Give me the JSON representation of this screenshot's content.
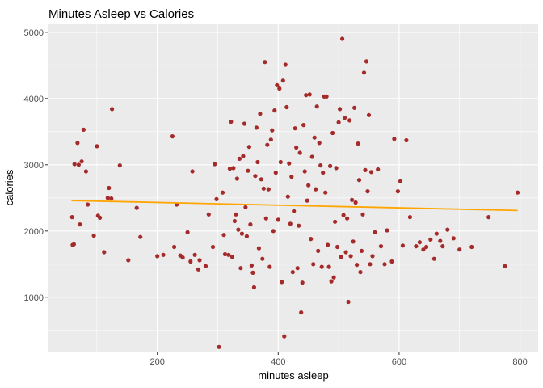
{
  "chart_data": {
    "type": "scatter",
    "title": "Minutes Asleep vs Calories",
    "xlabel": "minutes asleep",
    "ylabel": "calories",
    "xlim": [
      20,
      830
    ],
    "ylim": [
      180,
      5120
    ],
    "x_ticks": [
      200,
      400,
      600,
      800
    ],
    "y_ticks": [
      1000,
      2000,
      3000,
      4000,
      5000
    ],
    "x_tick_labels": [
      "200",
      "400",
      "600",
      "800"
    ],
    "y_tick_labels": [
      "1000",
      "2000",
      "3000",
      "4000",
      "5000"
    ],
    "grid": true,
    "point_color": "#A52A2A",
    "trend_color": "#FFA500",
    "panel_color": "#EBEBEB",
    "trendline": {
      "x": [
        58,
        796
      ],
      "y": [
        2460,
        2310
      ]
    },
    "points": [
      [
        59,
        2210
      ],
      [
        60,
        1790
      ],
      [
        62,
        1800
      ],
      [
        63,
        3010
      ],
      [
        68,
        3330
      ],
      [
        70,
        3000
      ],
      [
        72,
        2100
      ],
      [
        75,
        3050
      ],
      [
        78,
        3530
      ],
      [
        82,
        2900
      ],
      [
        85,
        2400
      ],
      [
        95,
        1930
      ],
      [
        100,
        3280
      ],
      [
        102,
        2230
      ],
      [
        105,
        2200
      ],
      [
        112,
        1680
      ],
      [
        118,
        2500
      ],
      [
        120,
        2650
      ],
      [
        124,
        2490
      ],
      [
        125,
        3840
      ],
      [
        138,
        2990
      ],
      [
        152,
        1560
      ],
      [
        166,
        2350
      ],
      [
        172,
        1910
      ],
      [
        200,
        1620
      ],
      [
        210,
        1640
      ],
      [
        225,
        3430
      ],
      [
        228,
        1760
      ],
      [
        232,
        2400
      ],
      [
        238,
        1630
      ],
      [
        242,
        1600
      ],
      [
        250,
        1980
      ],
      [
        255,
        1540
      ],
      [
        258,
        2900
      ],
      [
        262,
        1640
      ],
      [
        268,
        1420
      ],
      [
        270,
        1560
      ],
      [
        280,
        1470
      ],
      [
        285,
        2250
      ],
      [
        292,
        1760
      ],
      [
        295,
        3010
      ],
      [
        298,
        2480
      ],
      [
        302,
        250
      ],
      [
        308,
        2580
      ],
      [
        310,
        1940
      ],
      [
        312,
        1650
      ],
      [
        318,
        1640
      ],
      [
        320,
        2940
      ],
      [
        322,
        3650
      ],
      [
        324,
        1610
      ],
      [
        326,
        2950
      ],
      [
        328,
        2150
      ],
      [
        330,
        2250
      ],
      [
        332,
        2790
      ],
      [
        334,
        2020
      ],
      [
        336,
        3090
      ],
      [
        338,
        1440
      ],
      [
        340,
        1960
      ],
      [
        342,
        3130
      ],
      [
        344,
        3620
      ],
      [
        346,
        2360
      ],
      [
        348,
        1920
      ],
      [
        350,
        2910
      ],
      [
        352,
        3270
      ],
      [
        354,
        2100
      ],
      [
        356,
        1480
      ],
      [
        358,
        1370
      ],
      [
        360,
        1150
      ],
      [
        362,
        2830
      ],
      [
        364,
        3560
      ],
      [
        366,
        3040
      ],
      [
        368,
        1740
      ],
      [
        370,
        3770
      ],
      [
        372,
        2780
      ],
      [
        374,
        1580
      ],
      [
        376,
        2640
      ],
      [
        378,
        4550
      ],
      [
        380,
        2190
      ],
      [
        382,
        3300
      ],
      [
        384,
        2630
      ],
      [
        386,
        1460
      ],
      [
        388,
        3380
      ],
      [
        390,
        3520
      ],
      [
        392,
        2000
      ],
      [
        394,
        3820
      ],
      [
        396,
        2880
      ],
      [
        398,
        4200
      ],
      [
        400,
        2170
      ],
      [
        402,
        4150
      ],
      [
        404,
        3040
      ],
      [
        406,
        1230
      ],
      [
        408,
        4270
      ],
      [
        410,
        410
      ],
      [
        412,
        4510
      ],
      [
        414,
        3870
      ],
      [
        416,
        2520
      ],
      [
        418,
        3020
      ],
      [
        420,
        2110
      ],
      [
        422,
        2820
      ],
      [
        424,
        1380
      ],
      [
        426,
        2300
      ],
      [
        428,
        3550
      ],
      [
        430,
        3260
      ],
      [
        432,
        1440
      ],
      [
        434,
        2080
      ],
      [
        436,
        3180
      ],
      [
        438,
        770
      ],
      [
        440,
        1220
      ],
      [
        442,
        3600
      ],
      [
        444,
        2900
      ],
      [
        446,
        4050
      ],
      [
        448,
        2460
      ],
      [
        450,
        2690
      ],
      [
        452,
        4060
      ],
      [
        454,
        1880
      ],
      [
        456,
        3120
      ],
      [
        458,
        1500
      ],
      [
        460,
        3410
      ],
      [
        462,
        2630
      ],
      [
        464,
        3880
      ],
      [
        466,
        1700
      ],
      [
        468,
        3330
      ],
      [
        470,
        2990
      ],
      [
        472,
        1460
      ],
      [
        474,
        2880
      ],
      [
        476,
        4030
      ],
      [
        478,
        2580
      ],
      [
        480,
        4030
      ],
      [
        482,
        1790
      ],
      [
        484,
        1460
      ],
      [
        486,
        2980
      ],
      [
        488,
        1240
      ],
      [
        490,
        3480
      ],
      [
        492,
        1300
      ],
      [
        494,
        2140
      ],
      [
        496,
        2950
      ],
      [
        498,
        1760
      ],
      [
        500,
        3640
      ],
      [
        502,
        3840
      ],
      [
        504,
        1610
      ],
      [
        506,
        4900
      ],
      [
        508,
        2240
      ],
      [
        510,
        3710
      ],
      [
        512,
        1680
      ],
      [
        514,
        2190
      ],
      [
        516,
        930
      ],
      [
        518,
        3670
      ],
      [
        520,
        1620
      ],
      [
        522,
        2470
      ],
      [
        524,
        1840
      ],
      [
        526,
        3860
      ],
      [
        528,
        2430
      ],
      [
        530,
        1490
      ],
      [
        532,
        3320
      ],
      [
        534,
        2770
      ],
      [
        536,
        1380
      ],
      [
        538,
        1700
      ],
      [
        540,
        2250
      ],
      [
        542,
        4390
      ],
      [
        544,
        2920
      ],
      [
        546,
        4560
      ],
      [
        548,
        2600
      ],
      [
        550,
        3750
      ],
      [
        552,
        1500
      ],
      [
        554,
        2890
      ],
      [
        556,
        1620
      ],
      [
        560,
        1980
      ],
      [
        565,
        2930
      ],
      [
        570,
        1770
      ],
      [
        576,
        1500
      ],
      [
        580,
        2010
      ],
      [
        588,
        1540
      ],
      [
        592,
        3390
      ],
      [
        598,
        2600
      ],
      [
        602,
        2750
      ],
      [
        606,
        1780
      ],
      [
        612,
        3370
      ],
      [
        618,
        2210
      ],
      [
        628,
        1770
      ],
      [
        634,
        1830
      ],
      [
        640,
        1720
      ],
      [
        645,
        1760
      ],
      [
        652,
        1870
      ],
      [
        658,
        1580
      ],
      [
        662,
        1960
      ],
      [
        668,
        1850
      ],
      [
        672,
        1770
      ],
      [
        680,
        2020
      ],
      [
        690,
        1890
      ],
      [
        700,
        1720
      ],
      [
        720,
        1760
      ],
      [
        748,
        2210
      ],
      [
        775,
        1470
      ],
      [
        796,
        2580
      ]
    ]
  }
}
